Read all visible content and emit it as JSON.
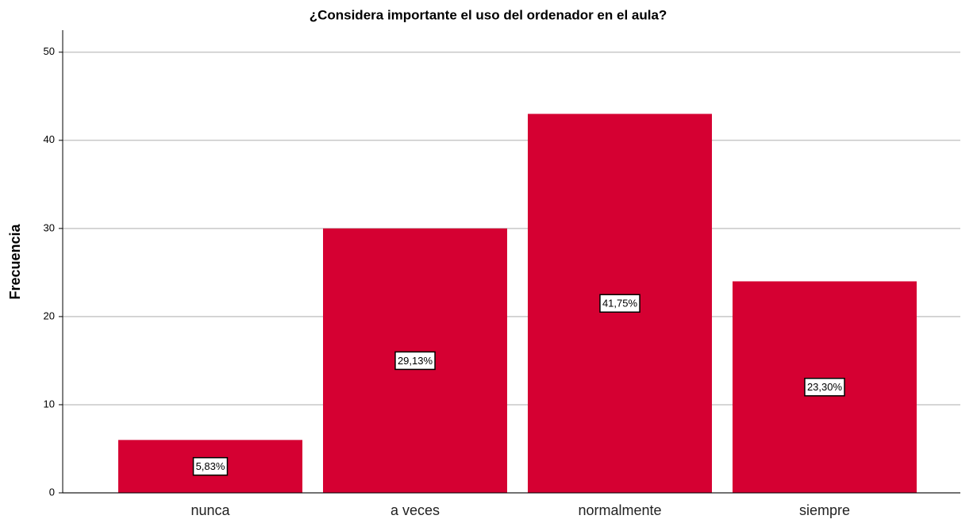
{
  "chart_data": {
    "type": "bar",
    "title": "¿Considera importante el uso del ordenador en el aula?",
    "y_label": "Frecuencia",
    "categories": [
      "nunca",
      "a veces",
      "normalmente",
      "siempre"
    ],
    "values": [
      6,
      30,
      43,
      24
    ],
    "data_labels": [
      "5,83%",
      "29,13%",
      "41,75%",
      "23,30%"
    ],
    "color": "#d50032",
    "ylim": [
      0,
      52.5
    ],
    "yticks": [
      0,
      10,
      20,
      30,
      40,
      50
    ],
    "grid": true
  }
}
